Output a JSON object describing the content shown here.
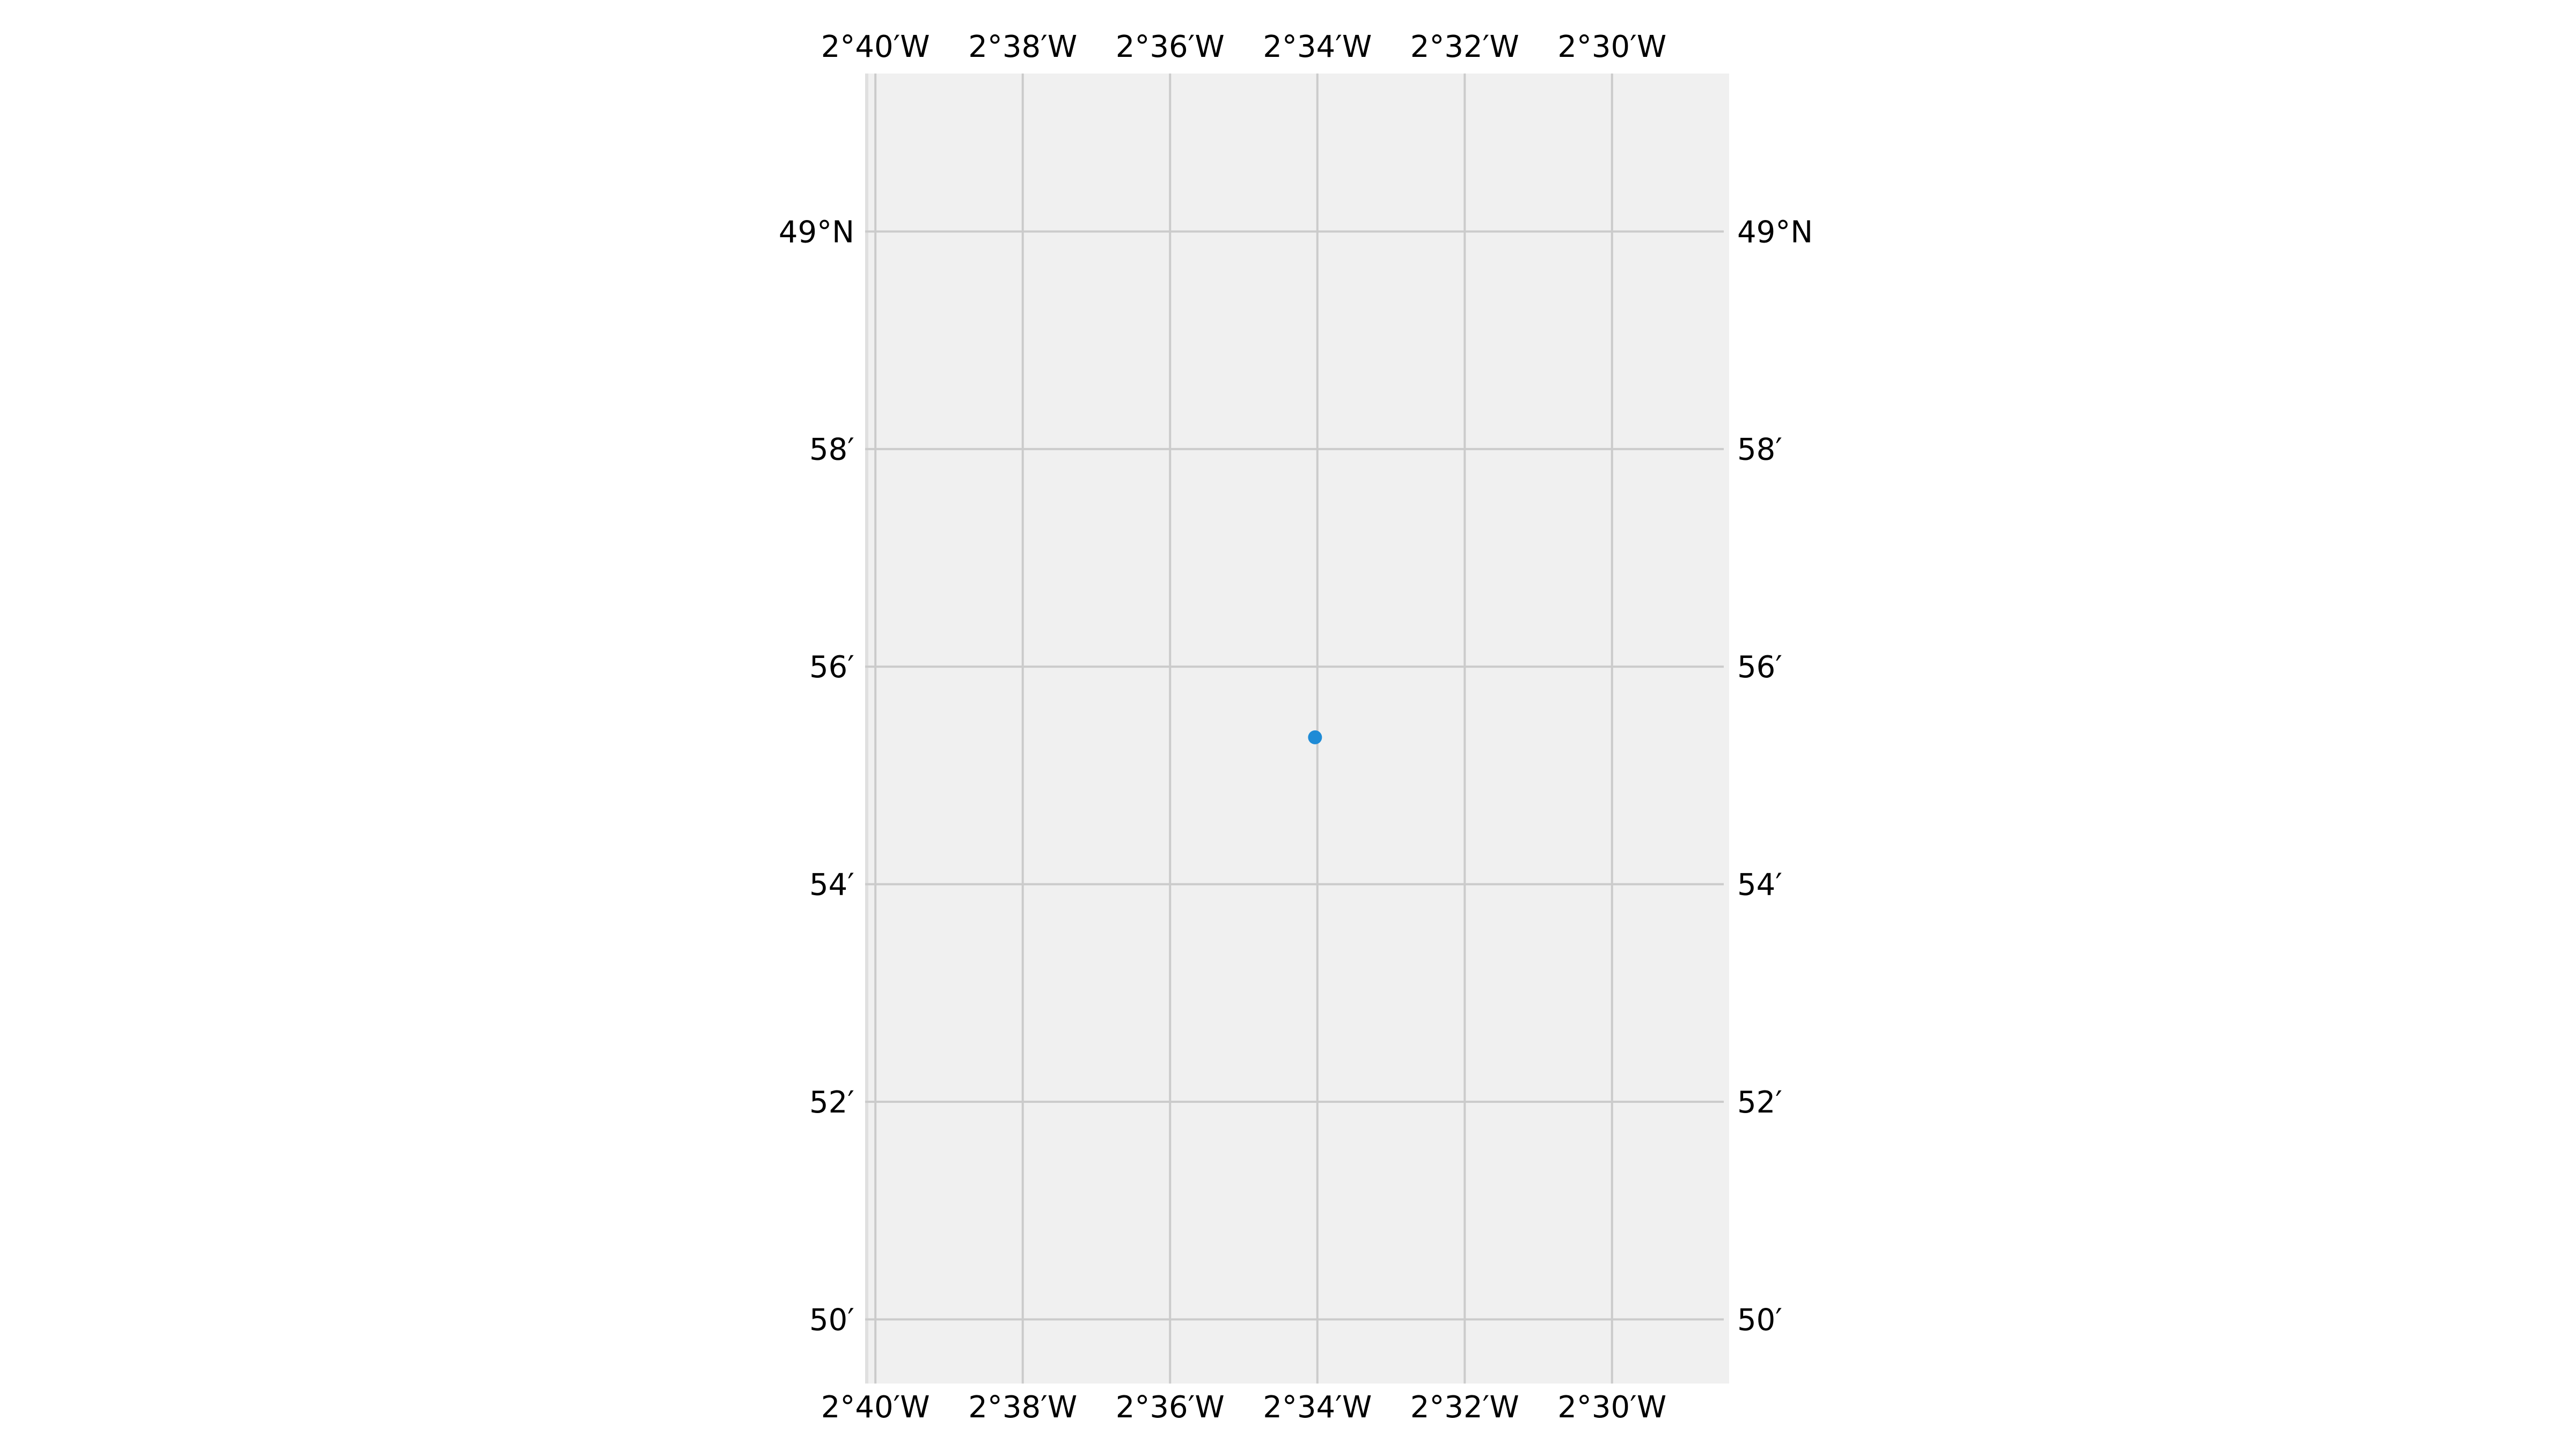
{
  "map": {
    "projection_extent": {
      "lon_min": -2.669,
      "lon_max": -2.4735,
      "lat_min": 48.8235,
      "lat_max": 49.0242
    },
    "meridians": [
      {
        "lon": -2.66667,
        "label": "2°40′W"
      },
      {
        "lon": -2.63333,
        "label": "2°38′W"
      },
      {
        "lon": -2.6,
        "label": "2°36′W"
      },
      {
        "lon": -2.56667,
        "label": "2°34′W"
      },
      {
        "lon": -2.53333,
        "label": "2°32′W"
      },
      {
        "lon": -2.5,
        "label": "2°30′W"
      }
    ],
    "parallels": [
      {
        "lat": 49.0,
        "label": "49°N"
      },
      {
        "lat": 48.96667,
        "label": "58′"
      },
      {
        "lat": 48.93333,
        "label": "56′"
      },
      {
        "lat": 48.9,
        "label": "54′"
      },
      {
        "lat": 48.86667,
        "label": "52′"
      },
      {
        "lat": 48.83333,
        "label": "50′"
      }
    ],
    "points": [
      {
        "lon": -2.5672,
        "lat": 48.9225,
        "color": "#1f8bd6"
      }
    ],
    "colors": {
      "background": "#f0f0f0",
      "gridline": "#cbcbcb",
      "point": "#1f8bd6"
    }
  }
}
